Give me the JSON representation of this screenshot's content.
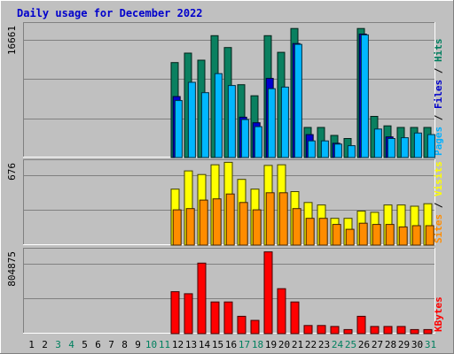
{
  "chart_data": {
    "type": "bar",
    "title": "Daily usage for December 2022",
    "days": [
      "1",
      "2",
      "3",
      "4",
      "5",
      "6",
      "7",
      "8",
      "9",
      "10",
      "11",
      "12",
      "13",
      "14",
      "15",
      "16",
      "17",
      "18",
      "19",
      "20",
      "21",
      "22",
      "23",
      "24",
      "25",
      "26",
      "27",
      "28",
      "29",
      "30",
      "31"
    ],
    "weekend_days": [
      "3",
      "4",
      "10",
      "11",
      "17",
      "18",
      "24",
      "25",
      "31"
    ],
    "panels": [
      {
        "id": "hits",
        "y_max_label": "16661",
        "y_max": 16661,
        "side_labels": [
          "Pages",
          "Files",
          "Hits"
        ],
        "side_colors": [
          "#00b0ff",
          "#0000cc",
          "#007f5f"
        ],
        "series": [
          {
            "name": "Hits",
            "color": "#0a8060",
            "values": [
              0,
              0,
              0,
              0,
              0,
              0,
              0,
              0,
              0,
              0,
              0,
              12000,
              13200,
              12300,
              15400,
              13900,
              9200,
              7800,
              15400,
              13300,
              16300,
              3800,
              3800,
              2800,
              2400,
              16300,
              5200,
              4000,
              3800,
              3800,
              3800
            ]
          },
          {
            "name": "Files",
            "color": "#0000d0",
            "values": [
              0,
              0,
              0,
              0,
              0,
              0,
              0,
              0,
              0,
              0,
              0,
              7700,
              0,
              0,
              0,
              0,
              5100,
              4400,
              10000,
              0,
              14400,
              2900,
              0,
              1800,
              0,
              15600,
              0,
              2600,
              0,
              0,
              0
            ]
          },
          {
            "name": "Pages",
            "color": "#00b7ff",
            "values": [
              0,
              0,
              0,
              0,
              0,
              0,
              0,
              0,
              0,
              0,
              0,
              7200,
              9500,
              8200,
              10600,
              9100,
              4800,
              3900,
              8700,
              8900,
              14300,
              2100,
              2100,
              1700,
              1500,
              15500,
              3600,
              2400,
              2500,
              3100,
              2900
            ]
          }
        ]
      },
      {
        "id": "visits",
        "y_max_label": "676",
        "y_max": 676,
        "side_labels": [
          "Sites",
          "Visits"
        ],
        "side_colors": [
          "#ff8c00",
          "#ffff00"
        ],
        "series": [
          {
            "name": "Visits",
            "color": "#ffff00",
            "values": [
              0,
              0,
              0,
              0,
              0,
              0,
              0,
              0,
              0,
              0,
              0,
              460,
              610,
              580,
              660,
              680,
              540,
              460,
              655,
              660,
              440,
              350,
              330,
              220,
              220,
              280,
              270,
              330,
              330,
              320,
              340
            ]
          },
          {
            "name": "Sites",
            "color": "#ff8c00",
            "values": [
              0,
              0,
              0,
              0,
              0,
              0,
              0,
              0,
              0,
              0,
              0,
              290,
              300,
              370,
              380,
              420,
              350,
              290,
              430,
              430,
              300,
              220,
              220,
              170,
              130,
              180,
              170,
              170,
              150,
              160,
              160
            ]
          }
        ]
      },
      {
        "id": "kbytes",
        "y_max_label": "804875",
        "y_max": 804875,
        "side_labels": [
          "KBytes"
        ],
        "side_colors": [
          "#ff0000"
        ],
        "series": [
          {
            "name": "KBytes",
            "color": "#ff0000",
            "values": [
              0,
              0,
              0,
              0,
              0,
              0,
              0,
              0,
              0,
              0,
              0,
              410000,
              390000,
              690000,
              310000,
              310000,
              170000,
              130000,
              800000,
              440000,
              310000,
              80000,
              80000,
              70000,
              40000,
              170000,
              70000,
              70000,
              70000,
              40000,
              40000
            ]
          }
        ]
      }
    ]
  }
}
